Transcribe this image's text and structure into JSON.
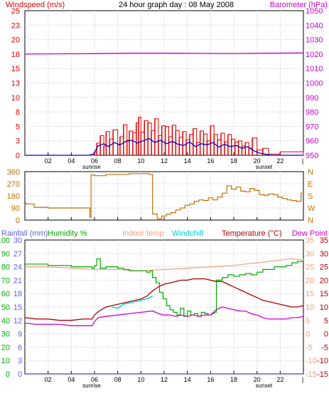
{
  "colors": {
    "windspeed": "#e00000",
    "wind_average": "#0000cc",
    "barometer": "#cc00cc",
    "wind_direction": "#c07000",
    "rainfall": "#6060e0",
    "humidity": "#00aa00",
    "indoor_temp": "#f0a080",
    "windchill": "#00cccc",
    "temperature": "#aa0000",
    "dew_point": "#cc00cc",
    "frame": "#000000",
    "grid": "#c0c0c0"
  },
  "chart_data": [
    {
      "type": "line",
      "panel": "wind-barometer",
      "title": "24 hour graph day : 08 May 2008",
      "left_axis_label": "Windspeed (m/s)",
      "right_axis_label": "Barometer (hPa)",
      "x_ticks": [
        "02",
        "04",
        "06",
        "08",
        "10",
        "12",
        "14",
        "16",
        "18",
        "20",
        "22"
      ],
      "x_annotations": [
        "sunrise",
        "sunset"
      ],
      "left_ticks": [
        "0",
        "3",
        "5",
        "8",
        "10",
        "13",
        "15",
        "18",
        "20",
        "23",
        "25"
      ],
      "right_ticks": [
        "950",
        "960",
        "970",
        "980",
        "990",
        "1000",
        "1010",
        "1020",
        "1030",
        "1040",
        "1050"
      ],
      "xlim": [
        0,
        24
      ],
      "left_ylim": [
        0,
        25
      ],
      "right_ylim": [
        950,
        1050
      ],
      "series": [
        {
          "name": "Windspeed (m/s)",
          "axis": "left",
          "style": "spikes",
          "x": [
            0,
            5,
            5.6,
            6.0,
            6.2,
            6.5,
            6.8,
            7.0,
            7.3,
            7.6,
            8.0,
            8.2,
            8.5,
            8.8,
            9.0,
            9.3,
            9.6,
            9.8,
            10.0,
            10.3,
            10.6,
            10.9,
            11.2,
            11.5,
            11.8,
            12.1,
            12.4,
            12.7,
            13.0,
            13.3,
            13.6,
            13.9,
            14.2,
            14.5,
            14.8,
            15.1,
            15.4,
            15.7,
            16.0,
            16.3,
            16.6,
            16.9,
            17.2,
            17.5,
            17.8,
            18.1,
            18.4,
            18.7,
            19.0,
            19.3,
            19.6,
            20.0,
            20.5,
            21.0,
            22.0,
            24
          ],
          "values": [
            0,
            0,
            0,
            0.5,
            2.1,
            3.4,
            1.6,
            4.1,
            2.8,
            4.4,
            1.8,
            3.2,
            5.3,
            2.6,
            4.2,
            3.9,
            5.6,
            6.6,
            4.0,
            6.0,
            5.6,
            4.3,
            6.3,
            3.4,
            5.1,
            5.0,
            3.2,
            5.2,
            4.3,
            3.1,
            4.1,
            2.7,
            3.6,
            4.6,
            2.2,
            4.2,
            3.7,
            2.5,
            5.1,
            3.6,
            2.7,
            3.8,
            2.3,
            3.6,
            2.8,
            2.3,
            2.5,
            1.6,
            2.2,
            1.2,
            3.0,
            0.9,
            1.2,
            0.2,
            0.6,
            0
          ]
        },
        {
          "name": "Average windspeed",
          "axis": "left",
          "style": "line",
          "x": [
            0,
            5.5,
            5.9,
            6.3,
            6.8,
            7.2,
            7.7,
            8.2,
            8.7,
            9.2,
            9.7,
            10.2,
            10.7,
            11.2,
            11.7,
            12.2,
            12.7,
            13.2,
            13.7,
            14.2,
            14.7,
            15.2,
            15.7,
            16.2,
            16.7,
            17.2,
            17.7,
            18.2,
            18.7,
            19.2,
            19.7,
            20.2,
            20.7,
            21.2,
            24
          ],
          "values": [
            0,
            0,
            0.2,
            1.6,
            2.0,
            1.5,
            2.2,
            1.8,
            2.4,
            2.6,
            2.1,
            2.5,
            2.9,
            2.2,
            2.6,
            2.0,
            2.4,
            1.9,
            1.7,
            2.3,
            1.5,
            2.0,
            1.8,
            2.2,
            1.4,
            1.9,
            1.5,
            1.7,
            1.2,
            1.5,
            0.8,
            0.4,
            0.2,
            0.0,
            0
          ]
        },
        {
          "name": "Barometer (hPa)",
          "axis": "right",
          "style": "line",
          "x": [
            0,
            3,
            6,
            9,
            12,
            15,
            18,
            21,
            24
          ],
          "values": [
            1020.0,
            1020.2,
            1020.3,
            1020.6,
            1020.6,
            1020.5,
            1020.4,
            1020.6,
            1020.8
          ]
        }
      ]
    },
    {
      "type": "line",
      "panel": "wind-direction",
      "left_ticks": [
        "0",
        "90",
        "180",
        "270",
        "360"
      ],
      "right_ticks": [
        "N",
        "W",
        "S",
        "E",
        "N"
      ],
      "xlim": [
        0,
        24
      ],
      "ylim": [
        0,
        360
      ],
      "series": [
        {
          "name": "Wind direction",
          "style": "step",
          "x": [
            0,
            0.1,
            0.8,
            2.0,
            3.5,
            5.2,
            5.55,
            5.6,
            5.7,
            6.0,
            7.0,
            9.0,
            10.5,
            10.7,
            11.0,
            11.4,
            11.8,
            12.2,
            12.6,
            13.0,
            13.4,
            13.8,
            14.2,
            14.6,
            15.0,
            15.4,
            15.8,
            16.2,
            16.6,
            17.0,
            17.4,
            17.8,
            18.2,
            18.6,
            19.0,
            19.4,
            19.8,
            20.2,
            20.6,
            21.0,
            21.4,
            21.8,
            22.2,
            22.6,
            23.0,
            23.4,
            23.8,
            24
          ],
          "values": [
            128,
            120,
            95,
            90,
            90,
            90,
            90,
            20,
            335,
            330,
            340,
            345,
            345,
            340,
            45,
            10,
            30,
            45,
            55,
            75,
            90,
            110,
            120,
            140,
            150,
            145,
            165,
            150,
            170,
            200,
            255,
            230,
            245,
            215,
            210,
            235,
            220,
            190,
            185,
            195,
            190,
            170,
            160,
            150,
            145,
            140,
            200,
            205
          ]
        }
      ]
    },
    {
      "type": "line",
      "panel": "temperature-humidity",
      "legend": [
        "Rainfall (mm)",
        "Humidity %",
        "Indoor temp",
        "Windchill",
        "Temperature (°C)",
        "Dew Point"
      ],
      "rain_ticks": [
        "0",
        "3",
        "6",
        "9",
        "12",
        "15",
        "18",
        "21",
        "24",
        "27",
        "30"
      ],
      "humidity_ticks": [
        "0",
        "10",
        "20",
        "30",
        "40",
        "50",
        "60",
        "70",
        "80",
        "90",
        "100"
      ],
      "temp_ticks": [
        "-15",
        "-10",
        "-5",
        "0",
        "5",
        "10",
        "15",
        "20",
        "25",
        "30",
        "35"
      ],
      "xlim": [
        0,
        24
      ],
      "rain_ylim": [
        0,
        30
      ],
      "humidity_ylim": [
        0,
        100
      ],
      "temp_ylim": [
        -15,
        35
      ],
      "series": [
        {
          "name": "Rainfall (mm)",
          "axis": "rain",
          "style": "line",
          "x": [
            0,
            24
          ],
          "values": [
            0,
            0
          ]
        },
        {
          "name": "Humidity %",
          "axis": "humidity",
          "style": "step",
          "x": [
            0,
            2.0,
            4.0,
            5.8,
            6.0,
            6.2,
            6.5,
            7.0,
            7.5,
            8.0,
            8.5,
            9.0,
            9.5,
            10.0,
            10.5,
            10.8,
            11.0,
            11.3,
            11.6,
            11.9,
            12.2,
            12.5,
            12.8,
            13.1,
            13.4,
            13.7,
            14.0,
            14.3,
            14.6,
            14.9,
            15.2,
            15.5,
            15.8,
            16.1,
            16.3,
            16.5,
            17.0,
            17.5,
            18.0,
            18.5,
            19.0,
            19.5,
            20.0,
            20.5,
            21.0,
            21.5,
            22.0,
            22.5,
            23.0,
            23.5,
            24
          ],
          "values": [
            82,
            81,
            80,
            79,
            81,
            86,
            79,
            80,
            80,
            79,
            78,
            77,
            77,
            77,
            76,
            77,
            72,
            68,
            61,
            56,
            51,
            48,
            46,
            44,
            49,
            43,
            47,
            44,
            45,
            43,
            46,
            45,
            44,
            45,
            46,
            70,
            72,
            74,
            73,
            74,
            75,
            74,
            76,
            78,
            78,
            80,
            80,
            81,
            83,
            84,
            86
          ]
        },
        {
          "name": "Indoor temp",
          "axis": "temp",
          "style": "line",
          "x": [
            0,
            2,
            4,
            6,
            8,
            10,
            12,
            14,
            16,
            18,
            19,
            20,
            21,
            22,
            23,
            24
          ],
          "values": [
            25,
            25,
            24.5,
            24,
            24,
            23.5,
            24,
            24.5,
            25,
            25.5,
            26,
            26.5,
            27,
            27.5,
            28,
            27.5
          ]
        },
        {
          "name": "Windchill",
          "axis": "temp",
          "style": "line",
          "x": [
            7.5,
            8.0,
            8.5,
            9.0,
            9.5,
            10.0,
            10.5,
            11.0
          ],
          "values": [
            10,
            9.5,
            11,
            11.5,
            12,
            12.5,
            13,
            14
          ]
        },
        {
          "name": "Temperature (°C)",
          "axis": "temp",
          "style": "line",
          "x": [
            0,
            1,
            2,
            3,
            4,
            5,
            5.8,
            6.0,
            6.4,
            7.0,
            7.5,
            8.0,
            8.5,
            9.0,
            9.5,
            10.0,
            10.5,
            11.0,
            11.5,
            12.0,
            12.5,
            13.0,
            13.5,
            14.0,
            14.5,
            15.0,
            15.5,
            16.0,
            16.5,
            17.0,
            17.5,
            18.0,
            18.5,
            19.0,
            19.5,
            20.0,
            20.5,
            21.0,
            21.5,
            22.0,
            22.5,
            23.0,
            23.5,
            24
          ],
          "values": [
            6,
            5.5,
            5.5,
            5,
            5,
            5.5,
            5.5,
            7,
            8.5,
            10,
            10.5,
            11,
            11.5,
            12,
            12.5,
            13,
            14,
            16,
            17.5,
            18.5,
            19,
            19.5,
            20,
            20,
            20.5,
            20.5,
            20.5,
            20,
            19.5,
            19.5,
            18.5,
            17.5,
            16.5,
            15.5,
            14.5,
            13.5,
            12.5,
            12,
            11.5,
            11,
            10.5,
            10,
            10,
            10.5
          ]
        },
        {
          "name": "Dew Point",
          "axis": "temp",
          "style": "line",
          "x": [
            0,
            1,
            2,
            3,
            4,
            5,
            5.8,
            6.0,
            6.3,
            7.0,
            8.0,
            9.0,
            10.0,
            11.0,
            11.5,
            12.0,
            12.5,
            13.0,
            13.5,
            14.0,
            14.5,
            15.0,
            15.5,
            16.0,
            16.5,
            17.0,
            17.5,
            18.0,
            18.5,
            19.0,
            19.5,
            20.0,
            20.5,
            21.0,
            21.5,
            22.0,
            22.5,
            23.0,
            23.5,
            24
          ],
          "values": [
            4,
            3.5,
            3.5,
            3.5,
            3,
            3,
            3,
            4.5,
            6,
            6.5,
            7,
            7.5,
            8,
            8.5,
            7.5,
            7,
            7,
            6.5,
            7,
            6.5,
            7,
            6.5,
            7,
            7,
            9,
            10,
            9.5,
            9,
            8.5,
            8.5,
            7.5,
            7,
            6,
            5.5,
            5.5,
            5.5,
            5.5,
            6,
            6,
            6.5
          ]
        }
      ]
    }
  ]
}
